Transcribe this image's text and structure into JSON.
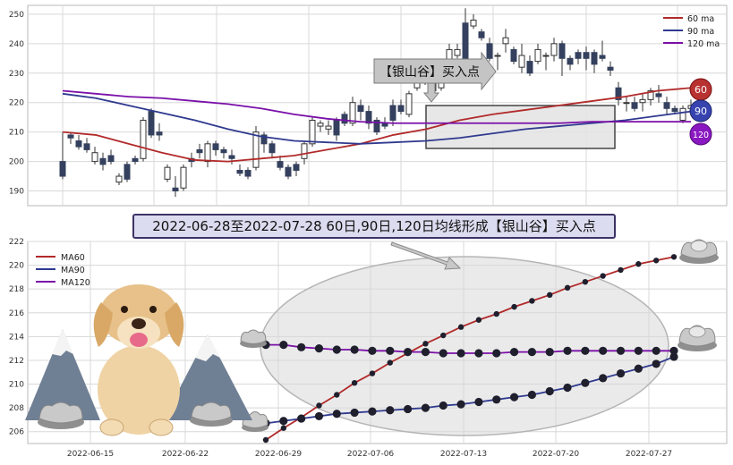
{
  "banner": "2022-06-28至2022-07-28 60日,90日,120日均线形成【银山谷】买入点",
  "callout": "【银山谷】买入点",
  "colors": {
    "ma60": "#b22a2a",
    "ma90": "#2f3a8f",
    "ma120": "#7a0fa8",
    "up_fill": "#ffffff",
    "down_fill": "#34405e",
    "grid": "#d8d8d8"
  },
  "chart_data": [
    {
      "type": "candlestick",
      "title": "",
      "ylim": [
        185,
        253
      ],
      "yticks": [
        190,
        200,
        210,
        220,
        230,
        240,
        250
      ],
      "legend": {
        "placement": "top-right",
        "entries": [
          "60 ma",
          "90 ma",
          "120 ma"
        ]
      },
      "badges": [
        "60",
        "90",
        "120"
      ],
      "candles": [
        [
          200,
          195,
          210,
          194
        ],
        [
          209,
          208,
          210,
          206
        ],
        [
          207,
          205,
          209,
          204
        ],
        [
          206,
          204,
          208,
          203
        ],
        [
          200,
          203,
          205,
          199
        ],
        [
          201,
          199,
          203,
          197
        ],
        [
          202,
          200,
          204,
          199
        ],
        [
          193,
          195,
          196,
          192
        ],
        [
          199,
          194,
          200,
          193
        ],
        [
          201,
          200,
          202,
          199
        ],
        [
          201,
          214,
          215,
          200
        ],
        [
          217,
          209,
          218,
          208
        ],
        [
          210,
          209,
          213,
          207
        ],
        [
          194,
          198,
          199,
          193
        ],
        [
          191,
          190,
          195,
          188
        ],
        [
          191,
          198,
          199,
          190
        ],
        [
          201,
          200,
          203,
          198
        ],
        [
          204,
          203,
          206,
          201
        ],
        [
          200,
          206,
          207,
          198
        ],
        [
          206,
          204,
          207,
          202
        ],
        [
          204,
          203,
          205,
          201
        ],
        [
          202,
          201,
          204,
          199
        ],
        [
          197,
          196,
          199,
          195
        ],
        [
          197,
          195,
          198,
          194
        ],
        [
          198,
          210,
          212,
          197
        ],
        [
          209,
          206,
          210,
          203
        ],
        [
          206,
          203,
          207,
          201
        ],
        [
          200,
          198,
          202,
          197
        ],
        [
          198,
          195,
          199,
          194
        ],
        [
          199,
          197,
          200,
          195
        ],
        [
          201,
          206,
          207,
          199
        ],
        [
          206,
          214,
          215,
          205
        ],
        [
          212,
          213,
          214,
          210
        ],
        [
          211,
          212,
          214,
          209
        ],
        [
          214,
          209,
          215,
          207
        ],
        [
          216,
          213,
          217,
          212
        ],
        [
          213,
          220,
          222,
          212
        ],
        [
          219,
          217,
          221,
          214
        ],
        [
          217,
          213,
          219,
          211
        ],
        [
          214,
          210,
          215,
          209
        ],
        [
          213,
          212,
          215,
          211
        ],
        [
          219,
          214,
          221,
          212
        ],
        [
          219,
          217,
          221,
          216
        ],
        [
          216,
          223,
          224,
          215
        ],
        [
          225,
          227,
          228,
          224
        ],
        [
          231,
          227,
          232,
          226
        ],
        [
          224,
          229,
          230,
          223
        ],
        [
          225,
          228,
          229,
          224
        ],
        [
          228,
          238,
          240,
          227
        ],
        [
          236,
          238,
          240,
          235
        ],
        [
          247,
          234,
          252,
          232
        ],
        [
          246,
          248,
          250,
          245
        ],
        [
          244,
          242,
          245,
          241
        ],
        [
          240,
          235,
          242,
          234
        ],
        [
          236,
          236,
          237,
          231
        ],
        [
          240,
          242,
          245,
          237
        ],
        [
          238,
          234,
          239,
          233
        ],
        [
          232,
          236,
          240,
          230
        ],
        [
          234,
          230,
          236,
          229
        ],
        [
          234,
          238,
          240,
          233
        ],
        [
          236,
          236,
          237,
          231
        ],
        [
          236,
          240,
          242,
          234
        ],
        [
          240,
          235,
          241,
          229
        ],
        [
          235,
          233,
          236,
          231
        ],
        [
          237,
          235,
          238,
          233
        ],
        [
          237,
          235,
          239,
          231
        ],
        [
          237,
          233,
          238,
          230
        ],
        [
          236,
          235,
          241,
          234
        ],
        [
          232,
          231,
          234,
          229
        ],
        [
          225,
          221,
          227,
          219
        ],
        [
          220,
          220,
          222,
          217
        ],
        [
          220,
          218,
          222,
          217
        ],
        [
          220,
          221,
          223,
          217
        ],
        [
          221,
          224,
          225,
          219
        ],
        [
          223,
          222,
          226,
          220
        ],
        [
          220,
          218,
          222,
          216
        ],
        [
          218,
          217,
          219,
          216
        ],
        [
          214,
          218,
          219,
          213
        ],
        [
          218,
          219,
          221,
          217
        ]
      ],
      "ma60": [
        [
          0,
          210
        ],
        [
          10,
          209
        ],
        [
          20,
          206
        ],
        [
          30,
          203
        ],
        [
          40,
          200.5
        ],
        [
          50,
          200
        ],
        [
          60,
          201
        ],
        [
          70,
          202
        ],
        [
          80,
          204
        ],
        [
          90,
          206
        ],
        [
          100,
          209
        ],
        [
          110,
          211
        ],
        [
          120,
          214
        ],
        [
          130,
          216
        ],
        [
          140,
          217.5
        ],
        [
          150,
          219
        ],
        [
          160,
          220.5
        ],
        [
          170,
          222
        ],
        [
          180,
          224
        ],
        [
          190,
          225
        ]
      ],
      "ma90": [
        [
          0,
          223
        ],
        [
          10,
          221.5
        ],
        [
          20,
          219
        ],
        [
          30,
          216.5
        ],
        [
          40,
          214
        ],
        [
          50,
          211
        ],
        [
          60,
          208.5
        ],
        [
          70,
          207
        ],
        [
          80,
          206.5
        ],
        [
          90,
          206
        ],
        [
          100,
          206.5
        ],
        [
          110,
          207
        ],
        [
          120,
          208
        ],
        [
          130,
          209.5
        ],
        [
          140,
          211
        ],
        [
          150,
          212
        ],
        [
          160,
          213
        ],
        [
          170,
          214
        ],
        [
          180,
          215.5
        ],
        [
          190,
          217
        ]
      ],
      "ma120": [
        [
          0,
          224
        ],
        [
          10,
          223
        ],
        [
          20,
          222
        ],
        [
          30,
          221.5
        ],
        [
          40,
          220.5
        ],
        [
          50,
          219.5
        ],
        [
          60,
          218
        ],
        [
          70,
          216
        ],
        [
          80,
          214.5
        ],
        [
          90,
          213.5
        ],
        [
          100,
          213
        ],
        [
          110,
          213
        ],
        [
          120,
          213
        ],
        [
          130,
          213
        ],
        [
          140,
          213
        ],
        [
          150,
          213
        ],
        [
          160,
          213.5
        ],
        [
          170,
          213.5
        ],
        [
          180,
          213.5
        ],
        [
          190,
          213.5
        ]
      ]
    },
    {
      "type": "line",
      "title": "",
      "ylim": [
        205,
        222
      ],
      "yticks": [
        206,
        208,
        210,
        212,
        214,
        216,
        218,
        220,
        222
      ],
      "x_ticks": [
        "2022-06-15",
        "2022-06-22",
        "2022-06-29",
        "2022-07-06",
        "2022-07-13",
        "2022-07-20",
        "2022-07-27"
      ],
      "legend": {
        "placement": "top-left",
        "entries": [
          "MA60",
          "MA90",
          "MA120"
        ]
      },
      "series": [
        {
          "name": "MA60",
          "values": [
            205.3,
            206.3,
            207.2,
            208.2,
            209.1,
            210.1,
            210.9,
            211.8,
            212.6,
            213.4,
            214.1,
            214.8,
            215.4,
            215.9,
            216.5,
            217.0,
            217.5,
            218.1,
            218.6,
            219.1,
            219.6,
            220.1,
            220.4,
            220.7
          ]
        },
        {
          "name": "MA90",
          "values": [
            206.7,
            206.9,
            207.1,
            207.3,
            207.5,
            207.6,
            207.7,
            207.8,
            207.9,
            208.0,
            208.2,
            208.3,
            208.5,
            208.7,
            208.9,
            209.1,
            209.4,
            209.7,
            210.1,
            210.5,
            210.9,
            211.3,
            211.7,
            212.3
          ]
        },
        {
          "name": "MA120",
          "values": [
            213.3,
            213.3,
            213.1,
            213.0,
            212.9,
            212.9,
            212.8,
            212.8,
            212.7,
            212.7,
            212.6,
            212.6,
            212.6,
            212.6,
            212.7,
            212.7,
            212.7,
            212.8,
            212.8,
            212.8,
            212.8,
            212.8,
            212.8,
            212.8
          ]
        }
      ]
    }
  ]
}
